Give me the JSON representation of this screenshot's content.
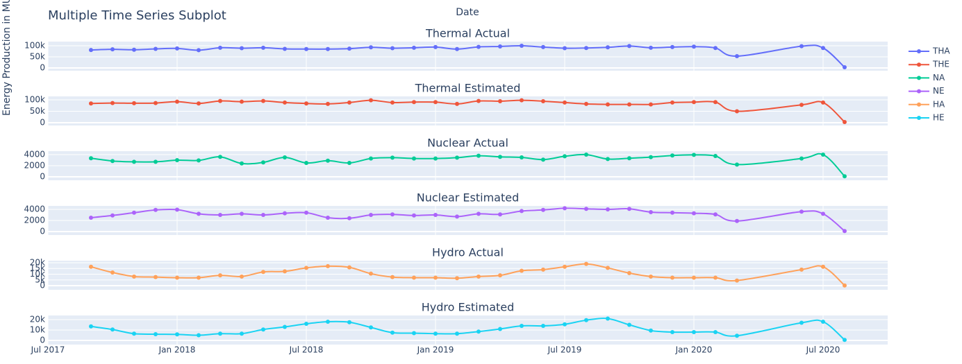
{
  "title": "Multiple Time Series Subplot",
  "xlabel": "Date",
  "ylabel": "Energy Production in MU",
  "xaxis": {
    "xlim": [
      "2017-07",
      "2020-10"
    ],
    "xticks": [
      {
        "value": "2017-07",
        "label": "Jul 2017"
      },
      {
        "value": "2018-01",
        "label": "Jan 2018"
      },
      {
        "value": "2018-07",
        "label": "Jul 2018"
      },
      {
        "value": "2019-01",
        "label": "Jan 2019"
      },
      {
        "value": "2019-07",
        "label": "Jul 2019"
      },
      {
        "value": "2020-01",
        "label": "Jan 2020"
      },
      {
        "value": "2020-07",
        "label": "Jul 2020"
      }
    ],
    "grid": true
  },
  "chart_data": [
    {
      "type": "line",
      "title": "Thermal Actual",
      "x": [
        "2017-09",
        "2017-10",
        "2017-11",
        "2017-12",
        "2018-01",
        "2018-02",
        "2018-03",
        "2018-04",
        "2018-05",
        "2018-06",
        "2018-07",
        "2018-08",
        "2018-09",
        "2018-10",
        "2018-11",
        "2018-12",
        "2019-01",
        "2019-02",
        "2019-03",
        "2019-04",
        "2019-05",
        "2019-06",
        "2019-07",
        "2019-08",
        "2019-09",
        "2019-10",
        "2019-11",
        "2019-12",
        "2020-01",
        "2020-02",
        "2020-03",
        "2020-06",
        "2020-07",
        "2020-08"
      ],
      "series": [
        {
          "name": "THA",
          "color": "#636efa",
          "values": [
            81000,
            84000,
            82000,
            86000,
            88000,
            80000,
            91000,
            89000,
            91000,
            86000,
            85000,
            85000,
            87000,
            93000,
            89000,
            91000,
            94000,
            85000,
            95000,
            97000,
            100000,
            94000,
            89000,
            90000,
            93000,
            99000,
            91000,
            94000,
            96000,
            90000,
            53000,
            98000,
            90000,
            3000
          ]
        }
      ],
      "ylim": [
        -12500,
        118750
      ],
      "yticks": [
        0,
        {
          "value": 50000,
          "label": "50k"
        },
        {
          "value": 100000,
          "label": "100k"
        }
      ],
      "grid": true
    },
    {
      "type": "line",
      "title": "Thermal Estimated",
      "x": [
        "2017-09",
        "2017-10",
        "2017-11",
        "2017-12",
        "2018-01",
        "2018-02",
        "2018-03",
        "2018-04",
        "2018-05",
        "2018-06",
        "2018-07",
        "2018-08",
        "2018-09",
        "2018-10",
        "2018-11",
        "2018-12",
        "2019-01",
        "2019-02",
        "2019-03",
        "2019-04",
        "2019-05",
        "2019-06",
        "2019-07",
        "2019-08",
        "2019-09",
        "2019-10",
        "2019-11",
        "2019-12",
        "2020-01",
        "2020-02",
        "2020-03",
        "2020-06",
        "2020-07",
        "2020-08"
      ],
      "series": [
        {
          "name": "THE",
          "color": "#ef553b",
          "values": [
            84000,
            86000,
            85000,
            86000,
            92000,
            84000,
            95000,
            92000,
            95000,
            88000,
            84000,
            82000,
            88000,
            98000,
            88000,
            90000,
            90000,
            82000,
            95000,
            94000,
            98000,
            94000,
            88000,
            82000,
            80000,
            80000,
            80000,
            88000,
            90000,
            90000,
            50000,
            78000,
            88000,
            3000
          ]
        }
      ],
      "ylim": [
        -12000,
        115000
      ],
      "yticks": [
        0,
        {
          "value": 50000,
          "label": "50k"
        },
        {
          "value": 100000,
          "label": "100k"
        }
      ],
      "grid": true
    },
    {
      "type": "line",
      "title": "Nuclear Actual",
      "x": [
        "2017-09",
        "2017-10",
        "2017-11",
        "2017-12",
        "2018-01",
        "2018-02",
        "2018-03",
        "2018-04",
        "2018-05",
        "2018-06",
        "2018-07",
        "2018-08",
        "2018-09",
        "2018-10",
        "2018-11",
        "2018-12",
        "2019-01",
        "2019-02",
        "2019-03",
        "2019-04",
        "2019-05",
        "2019-06",
        "2019-07",
        "2019-08",
        "2019-09",
        "2019-10",
        "2019-11",
        "2019-12",
        "2020-01",
        "2020-02",
        "2020-03",
        "2020-06",
        "2020-07",
        "2020-08"
      ],
      "series": [
        {
          "name": "NA",
          "color": "#00cc96",
          "values": [
            3350,
            2850,
            2700,
            2700,
            3000,
            2950,
            3600,
            2400,
            2600,
            3500,
            2500,
            2900,
            2500,
            3300,
            3450,
            3300,
            3300,
            3450,
            3800,
            3600,
            3500,
            3100,
            3700,
            4000,
            3200,
            3350,
            3550,
            3850,
            3950,
            3750,
            2200,
            3300,
            4000,
            100
          ]
        }
      ],
      "ylim": [
        -625,
        4625
      ],
      "yticks": [
        0,
        2000,
        4000
      ],
      "grid": true
    },
    {
      "type": "line",
      "title": "Nuclear Estimated",
      "x": [
        "2017-09",
        "2017-10",
        "2017-11",
        "2017-12",
        "2018-01",
        "2018-02",
        "2018-03",
        "2018-04",
        "2018-05",
        "2018-06",
        "2018-07",
        "2018-08",
        "2018-09",
        "2018-10",
        "2018-11",
        "2018-12",
        "2019-01",
        "2019-02",
        "2019-03",
        "2019-04",
        "2019-05",
        "2019-06",
        "2019-07",
        "2019-08",
        "2019-09",
        "2019-10",
        "2019-11",
        "2019-12",
        "2020-01",
        "2020-02",
        "2020-03",
        "2020-06",
        "2020-07",
        "2020-08"
      ],
      "series": [
        {
          "name": "NE",
          "color": "#ab63fa",
          "values": [
            2500,
            2900,
            3400,
            3900,
            3950,
            3200,
            3000,
            3200,
            3000,
            3300,
            3400,
            2500,
            2400,
            3000,
            3100,
            2900,
            3000,
            2700,
            3200,
            3100,
            3700,
            3900,
            4200,
            4100,
            4000,
            4100,
            3500,
            3400,
            3300,
            3100,
            1900,
            3600,
            3200,
            100
          ]
        }
      ],
      "ylim": [
        -625,
        4625
      ],
      "yticks": [
        0,
        2000,
        4000
      ],
      "grid": true
    },
    {
      "type": "line",
      "title": "Hydro Actual",
      "x": [
        "2017-09",
        "2017-10",
        "2017-11",
        "2017-12",
        "2018-01",
        "2018-02",
        "2018-03",
        "2018-04",
        "2018-05",
        "2018-06",
        "2018-07",
        "2018-08",
        "2018-09",
        "2018-10",
        "2018-11",
        "2018-12",
        "2019-01",
        "2019-02",
        "2019-03",
        "2019-04",
        "2019-05",
        "2019-06",
        "2019-07",
        "2019-08",
        "2019-09",
        "2019-10",
        "2019-11",
        "2019-12",
        "2020-01",
        "2020-02",
        "2020-03",
        "2020-06",
        "2020-07",
        "2020-08"
      ],
      "series": [
        {
          "name": "HA",
          "color": "#ffa15a",
          "values": [
            16500,
            11500,
            8000,
            7500,
            7000,
            7000,
            9000,
            8000,
            12000,
            12500,
            15500,
            17000,
            16000,
            10500,
            7500,
            7000,
            7000,
            6500,
            8000,
            9000,
            13000,
            14000,
            16500,
            19000,
            15500,
            11000,
            8000,
            7000,
            7000,
            7000,
            4500,
            14000,
            16500,
            200
          ]
        }
      ],
      "ylim": [
        -3600,
        21800
      ],
      "yticks": [
        0,
        {
          "value": 5000,
          "label": "5k"
        },
        {
          "value": 10000,
          "label": "10k"
        },
        {
          "value": 15000,
          "label": "15k"
        },
        {
          "value": 20000,
          "label": "20k"
        }
      ],
      "grid": true
    },
    {
      "type": "line",
      "title": "Hydro Estimated",
      "x": [
        "2017-09",
        "2017-10",
        "2017-11",
        "2017-12",
        "2018-01",
        "2018-02",
        "2018-03",
        "2018-04",
        "2018-05",
        "2018-06",
        "2018-07",
        "2018-08",
        "2018-09",
        "2018-10",
        "2018-11",
        "2018-12",
        "2019-01",
        "2019-02",
        "2019-03",
        "2019-04",
        "2019-05",
        "2019-06",
        "2019-07",
        "2019-08",
        "2019-09",
        "2019-10",
        "2019-11",
        "2019-12",
        "2020-01",
        "2020-02",
        "2020-03",
        "2020-06",
        "2020-07",
        "2020-08"
      ],
      "series": [
        {
          "name": "HE",
          "color": "#19d3f3",
          "values": [
            13500,
            10500,
            6500,
            6000,
            5800,
            5000,
            6500,
            6500,
            10500,
            13000,
            16000,
            18000,
            17500,
            12500,
            7500,
            7000,
            6500,
            6500,
            8500,
            11000,
            14000,
            14000,
            15500,
            19500,
            21000,
            15000,
            9500,
            8000,
            8000,
            8000,
            4500,
            17000,
            18000,
            500
          ]
        }
      ],
      "ylim": [
        -4000,
        24000
      ],
      "yticks": [
        0,
        {
          "value": 10000,
          "label": "10k"
        },
        {
          "value": 20000,
          "label": "20k"
        }
      ],
      "grid": true
    }
  ]
}
